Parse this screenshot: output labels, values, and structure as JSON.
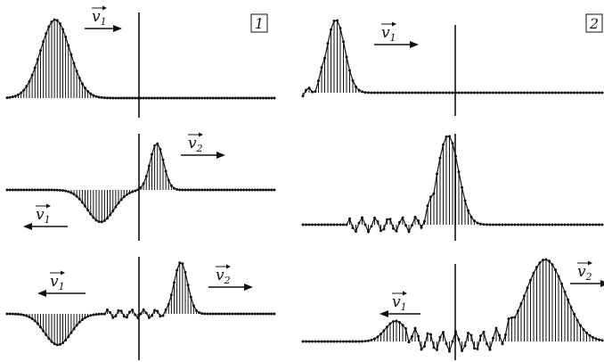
{
  "figure": {
    "panel_labels": [
      "1",
      "2"
    ],
    "velocity_labels": {
      "v1": {
        "base": "v",
        "sub": "1"
      },
      "v2": {
        "base": "v",
        "sub": "2"
      }
    }
  },
  "panels": [
    {
      "label": "1",
      "rows": [
        {
          "pulses": [
            {
              "center": -0.64,
              "width": 0.11,
              "amp": 1.0
            }
          ],
          "arrows": [
            {
              "label": "v1",
              "dir": "right"
            }
          ]
        },
        {
          "pulses": [
            {
              "center": 0.12,
              "width": 0.05,
              "amp": 0.9
            },
            {
              "center": -0.3,
              "width": 0.1,
              "amp": -0.62
            }
          ],
          "arrows": [
            {
              "label": "v2",
              "dir": "right"
            },
            {
              "label": "v1",
              "dir": "left"
            }
          ]
        },
        {
          "pulses": [
            {
              "center": 0.3,
              "width": 0.05,
              "amp": 1.0
            },
            {
              "center": -0.62,
              "width": 0.1,
              "amp": -0.6
            }
          ],
          "ripple": {
            "from": -0.25,
            "to": 0.18,
            "amp": 0.08
          },
          "arrows": [
            {
              "label": "v1",
              "dir": "left"
            },
            {
              "label": "v2",
              "dir": "right"
            }
          ]
        }
      ]
    },
    {
      "label": "2",
      "rows": [
        {
          "pulses": [
            {
              "center": -0.78,
              "width": 0.06,
              "amp": 1.0
            }
          ],
          "ripple": {
            "from": -1.0,
            "to": -0.85,
            "amp": 0.06
          },
          "arrows": [
            {
              "label": "v1",
              "dir": "right"
            }
          ]
        },
        {
          "pulses": [
            {
              "center": -0.03,
              "width": 0.07,
              "amp": 1.0
            }
          ],
          "ripple": {
            "from": -0.7,
            "to": -0.12,
            "amp": 0.08
          },
          "arrows": []
        },
        {
          "pulses": [
            {
              "center": 0.62,
              "width": 0.13,
              "amp": 1.0
            },
            {
              "center": -0.38,
              "width": 0.07,
              "amp": 0.25
            }
          ],
          "ripple": {
            "from": -0.3,
            "to": 0.4,
            "amp": 0.12
          },
          "arrows": [
            {
              "label": "v1",
              "dir": "left"
            },
            {
              "label": "v2",
              "dir": "right"
            }
          ]
        }
      ]
    }
  ],
  "colors": {
    "ink": "#111111",
    "background": "#ffffff"
  }
}
